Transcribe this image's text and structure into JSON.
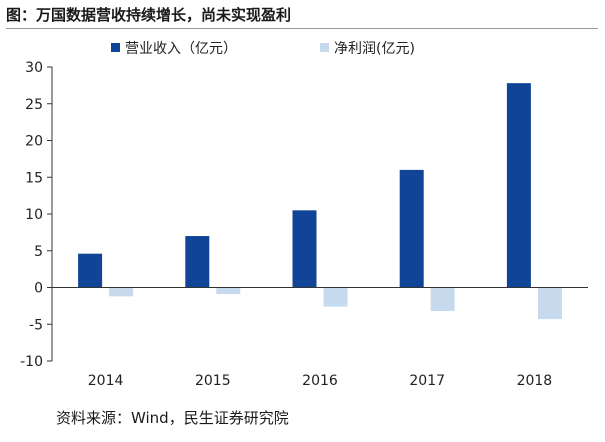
{
  "figure": {
    "title": "图：万国数据营收持续增长，尚未实现盈利",
    "source": "资料来源：Wind，民生证券研究院"
  },
  "chart_data": {
    "type": "bar",
    "categories": [
      "2014",
      "2015",
      "2016",
      "2017",
      "2018"
    ],
    "series": [
      {
        "name": "营业收入（亿元）",
        "color": "#0f4496",
        "values": [
          4.6,
          7.0,
          10.5,
          16.0,
          27.8
        ]
      },
      {
        "name": "净利润(亿元)",
        "color": "#c7d9ec",
        "values": [
          -1.2,
          -0.9,
          -2.6,
          -3.2,
          -4.3
        ]
      }
    ],
    "ylim": [
      -10,
      30
    ],
    "yticks": [
      -10,
      -5,
      0,
      5,
      10,
      15,
      20,
      25,
      30
    ],
    "grid": false,
    "legend": "top"
  }
}
